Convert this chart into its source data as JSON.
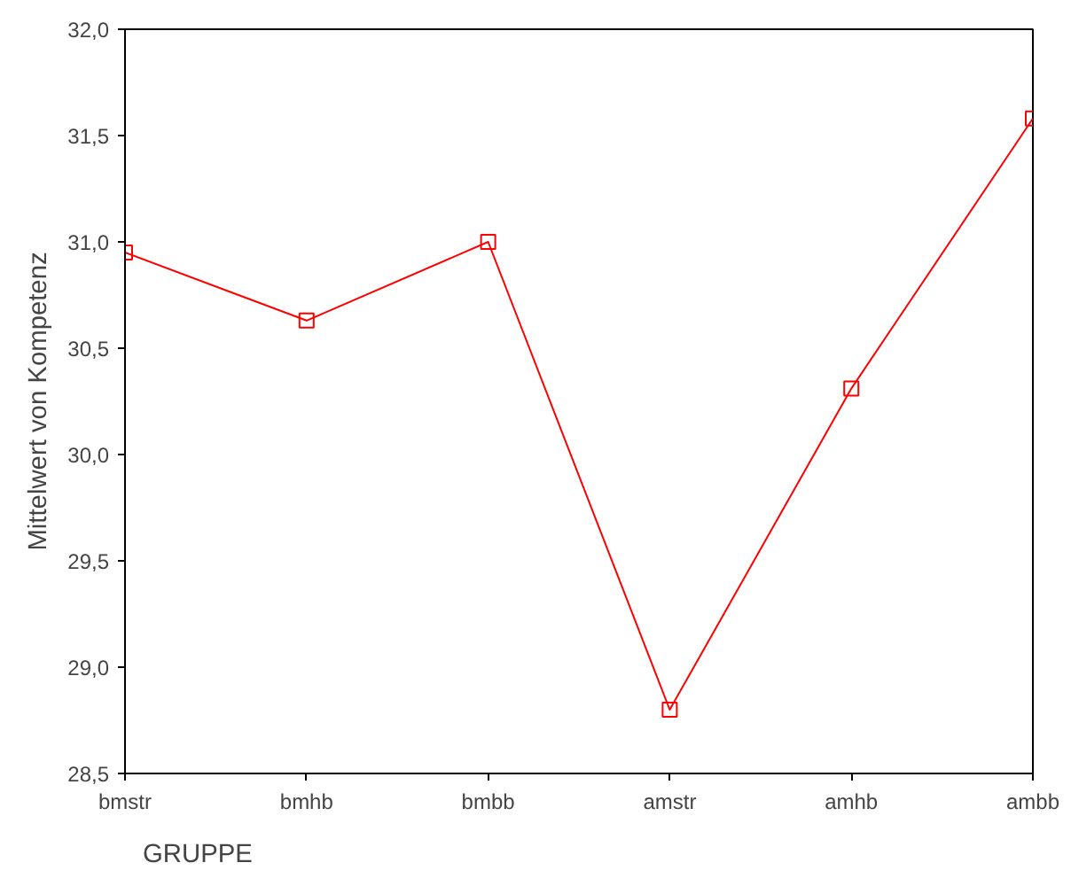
{
  "chart_data": {
    "type": "line",
    "xlabel": "GRUPPE",
    "ylabel": "Mittelwert von Kompetenz",
    "categories": [
      "bmstr",
      "bmhb",
      "bmbb",
      "amstr",
      "amhb",
      "ambb"
    ],
    "series": [
      {
        "color": "#ff0000",
        "values": [
          30.95,
          30.63,
          31.0,
          28.8,
          30.31,
          31.58
        ]
      }
    ],
    "ylim": [
      28.5,
      32.0
    ],
    "yticks": [
      {
        "value": 28.5,
        "label": "28,5"
      },
      {
        "value": 29.0,
        "label": "29,0"
      },
      {
        "value": 29.5,
        "label": "29,5"
      },
      {
        "value": 30.0,
        "label": "30,0"
      },
      {
        "value": 30.5,
        "label": "30,5"
      },
      {
        "value": 31.0,
        "label": "31,0"
      },
      {
        "value": 31.5,
        "label": "31,5"
      },
      {
        "value": 32.0,
        "label": "32,0"
      }
    ],
    "grid": false,
    "marker": "square",
    "line_style": "solid"
  }
}
